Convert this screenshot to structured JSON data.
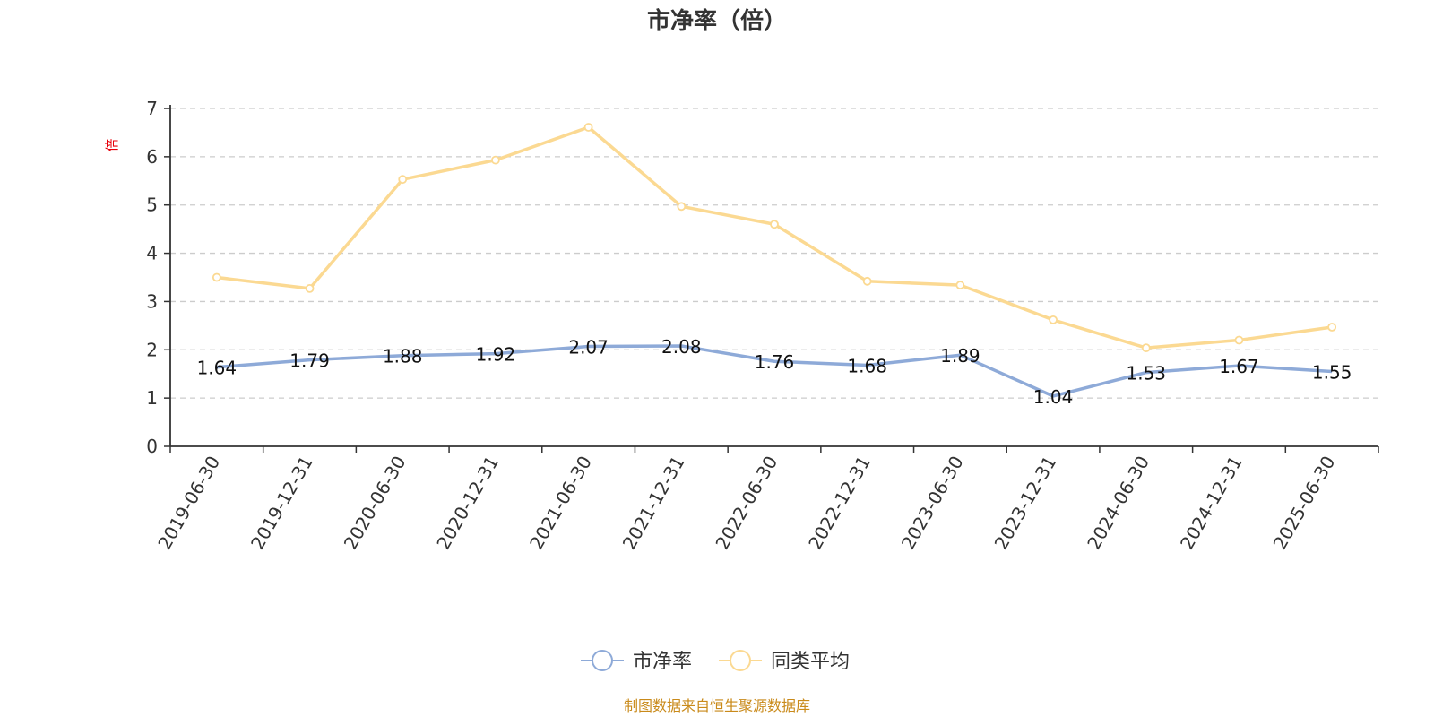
{
  "chart_data": {
    "type": "line",
    "title": "市净率（倍）",
    "ylabel": "倍",
    "ylim": [
      0,
      7
    ],
    "yticks": [
      "0",
      "1",
      "2",
      "3",
      "4",
      "5",
      "6",
      "7"
    ],
    "grid": true,
    "legend_position": "bottom",
    "categories": [
      "2019-06-30",
      "2019-12-31",
      "2020-06-30",
      "2020-12-31",
      "2021-06-30",
      "2021-12-31",
      "2022-06-30",
      "2022-12-31",
      "2023-06-30",
      "2023-12-31",
      "2024-06-30",
      "2024-12-31",
      "2025-06-30"
    ],
    "series": [
      {
        "name": "市净率",
        "color": "#8eaad8",
        "values": [
          1.64,
          1.79,
          1.88,
          1.92,
          2.07,
          2.08,
          1.76,
          1.68,
          1.89,
          1.04,
          1.53,
          1.67,
          1.55
        ],
        "labels": [
          "1.64",
          "1.79",
          "1.88",
          "1.92",
          "2.07",
          "2.08",
          "1.76",
          "1.68",
          "1.89",
          "1.04",
          "1.53",
          "1.67",
          "1.55"
        ]
      },
      {
        "name": "同类平均",
        "color": "#fbd992",
        "values": [
          3.5,
          3.27,
          5.53,
          5.93,
          6.61,
          4.97,
          4.6,
          3.42,
          3.34,
          2.62,
          2.04,
          2.2,
          2.47
        ]
      }
    ],
    "source": "制图数据来自恒生聚源数据库"
  }
}
